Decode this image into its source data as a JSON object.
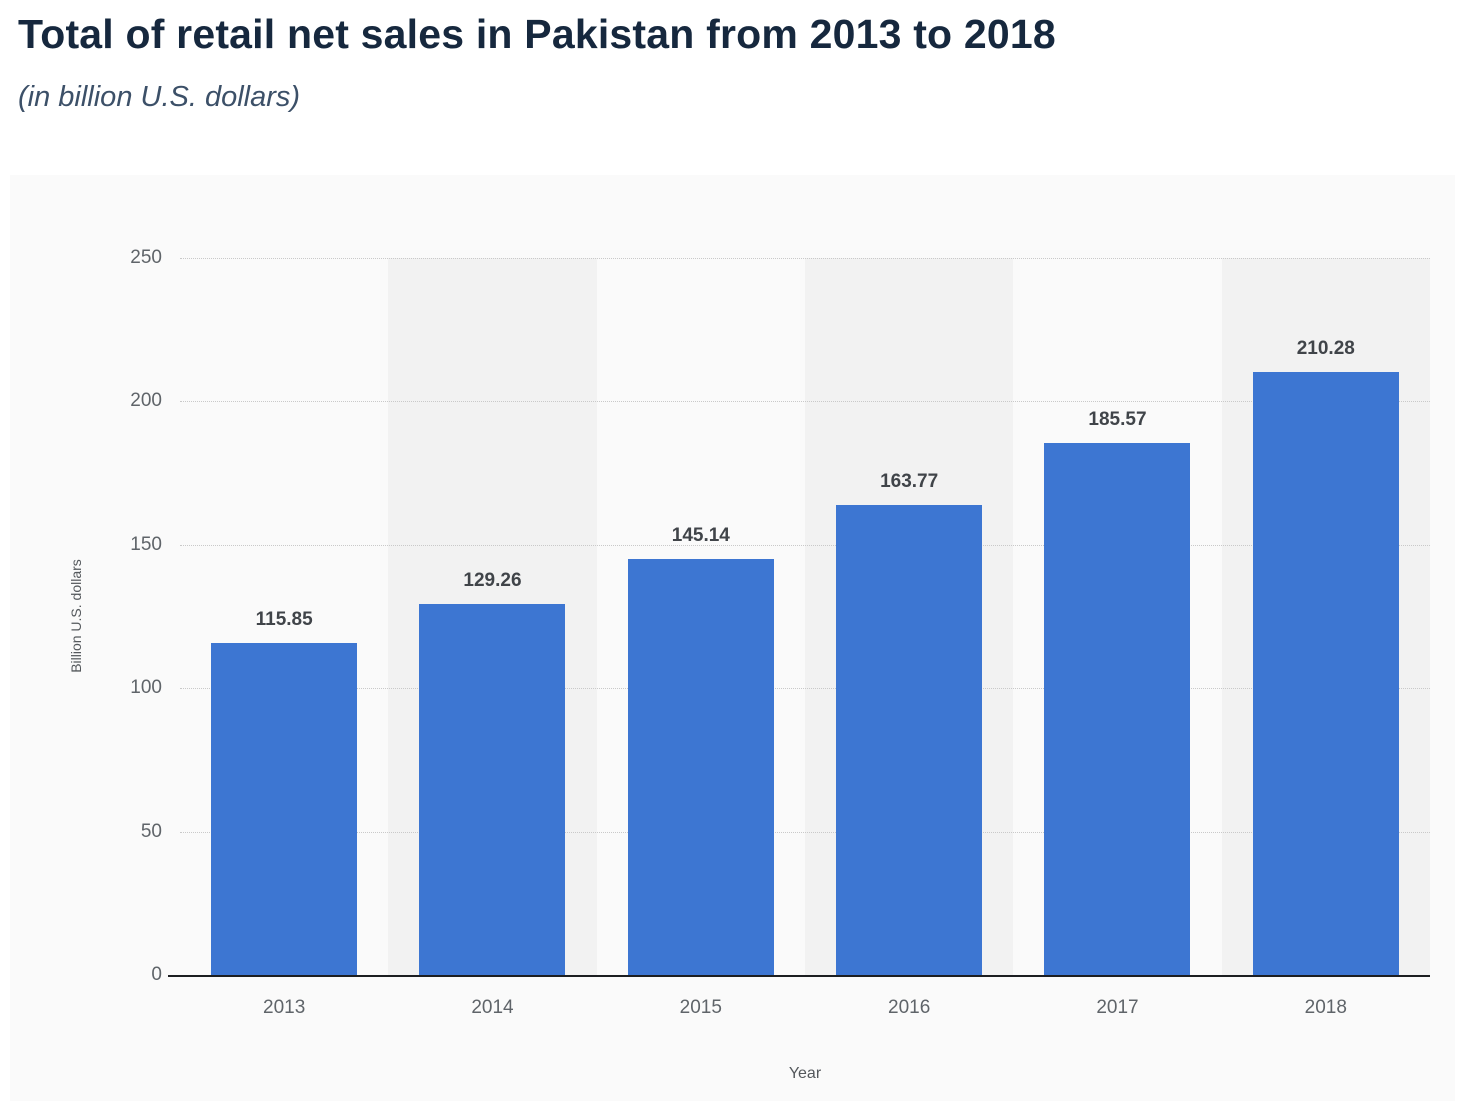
{
  "header": {
    "title": "Total of retail net sales in Pakistan from 2013 to 2018",
    "subtitle": "(in billion U.S. dollars)"
  },
  "chart_data": {
    "type": "bar",
    "title": "Total of retail net sales in Pakistan from 2013 to 2018",
    "subtitle": "(in billion U.S. dollars)",
    "categories": [
      "2013",
      "2014",
      "2015",
      "2016",
      "2017",
      "2018"
    ],
    "values": [
      115.85,
      129.26,
      145.14,
      163.77,
      185.57,
      210.28
    ],
    "xlabel": "Year",
    "ylabel": "Billion U.S. dollars",
    "ylim": [
      0,
      250
    ],
    "yticks": [
      0,
      50,
      100,
      150,
      200,
      250
    ],
    "bar_color": "#3d76d2",
    "stripe_color": "#f2f2f2",
    "grid": true,
    "legend_position": "none"
  }
}
